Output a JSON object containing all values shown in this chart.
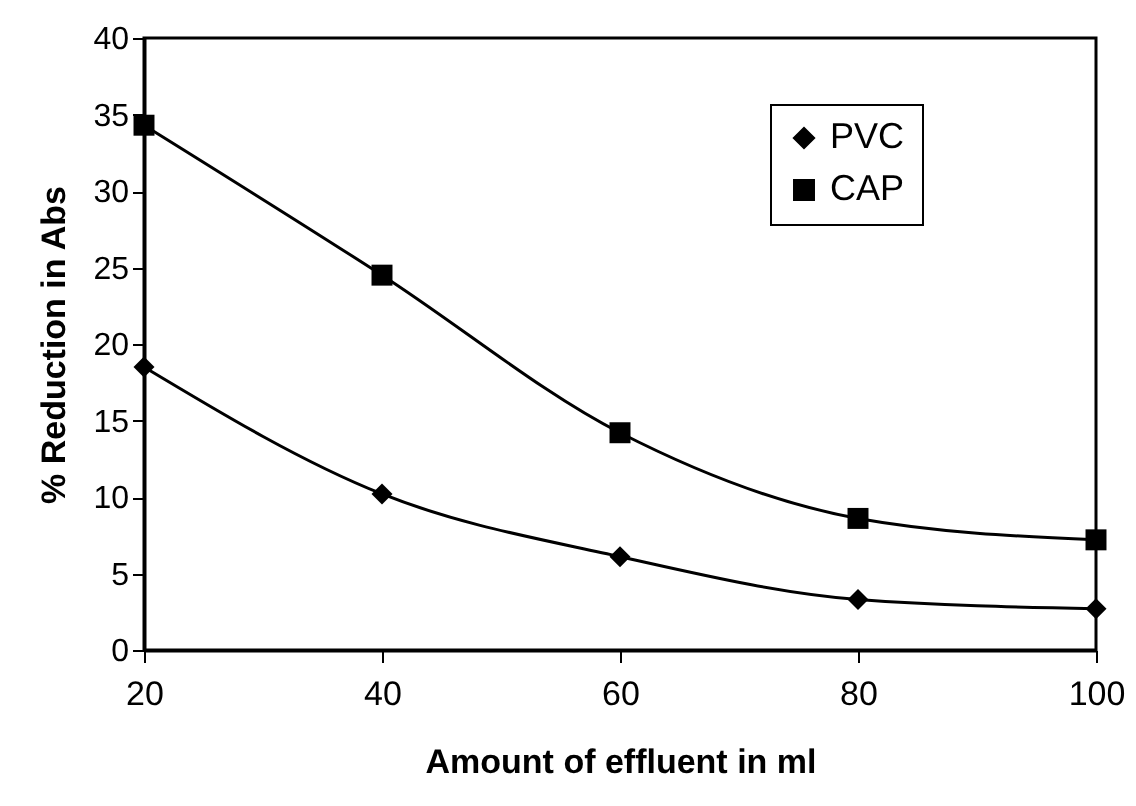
{
  "chart_data": {
    "type": "line",
    "xlabel": "Amount of effluent in ml",
    "ylabel": "% Reduction in Abs",
    "x": [
      20,
      40,
      60,
      80,
      100
    ],
    "xlim": [
      20,
      100
    ],
    "xticks": [
      20,
      40,
      60,
      80,
      100
    ],
    "ylim": [
      0,
      40
    ],
    "yticks": [
      0,
      5,
      10,
      15,
      20,
      25,
      30,
      35,
      40
    ],
    "grid": false,
    "legend": "top right",
    "line_style": "solid",
    "series": [
      {
        "name": "PVC",
        "color": "#000000",
        "marker": "diamond",
        "values": [
          18.5,
          10.2,
          6.1,
          3.3,
          2.7
        ]
      },
      {
        "name": "CAP",
        "color": "#000000",
        "marker": "square",
        "values": [
          34.3,
          24.5,
          14.2,
          8.6,
          7.2
        ]
      }
    ]
  }
}
